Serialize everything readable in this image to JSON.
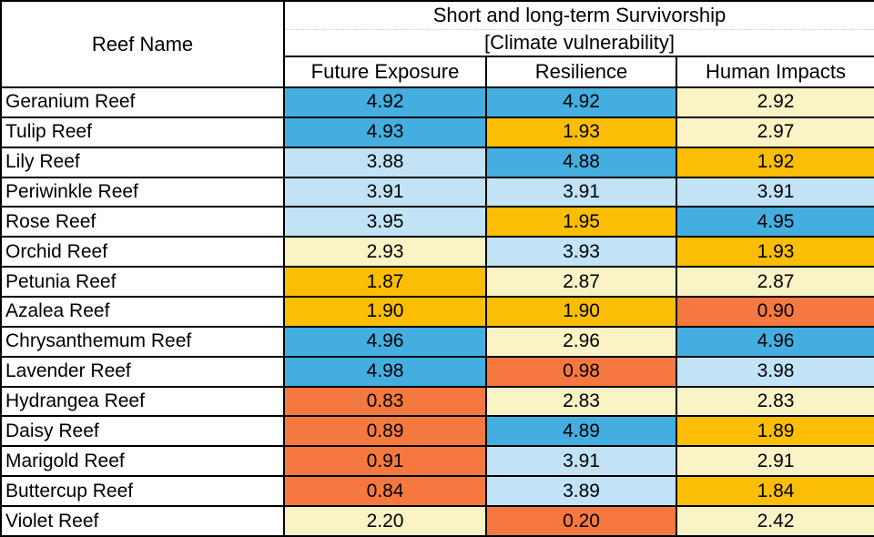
{
  "table": {
    "corner_header": "Reef Name",
    "group_header_line1": "Short and long-term Survivorship",
    "group_header_line2": "[Climate vulnerability]",
    "columns": [
      "Future Exposure",
      "Resilience",
      "Human Impacts"
    ],
    "rows": [
      {
        "name": "Geranium Reef",
        "values": [
          "4.92",
          "4.92",
          "2.92"
        ]
      },
      {
        "name": "Tulip Reef",
        "values": [
          "4.93",
          "1.93",
          "2.97"
        ]
      },
      {
        "name": "Lily Reef",
        "values": [
          "3.88",
          "4.88",
          "1.92"
        ]
      },
      {
        "name": "Periwinkle Reef",
        "values": [
          "3.91",
          "3.91",
          "3.91"
        ]
      },
      {
        "name": "Rose Reef",
        "values": [
          "3.95",
          "1.95",
          "4.95"
        ]
      },
      {
        "name": "Orchid Reef",
        "values": [
          "2.93",
          "3.93",
          "1.93"
        ]
      },
      {
        "name": "Petunia Reef",
        "values": [
          "1.87",
          "2.87",
          "2.87"
        ]
      },
      {
        "name": "Azalea Reef",
        "values": [
          "1.90",
          "1.90",
          "0.90"
        ]
      },
      {
        "name": "Chrysanthemum Reef",
        "values": [
          "4.96",
          "2.96",
          "4.96"
        ]
      },
      {
        "name": "Lavender Reef",
        "values": [
          "4.98",
          "0.98",
          "3.98"
        ]
      },
      {
        "name": "Hydrangea Reef",
        "values": [
          "0.83",
          "2.83",
          "2.83"
        ]
      },
      {
        "name": "Daisy Reef",
        "values": [
          "0.89",
          "4.89",
          "1.89"
        ]
      },
      {
        "name": "Marigold Reef",
        "values": [
          "0.91",
          "3.91",
          "2.91"
        ]
      },
      {
        "name": "Buttercup Reef",
        "values": [
          "0.84",
          "3.89",
          "1.84"
        ]
      },
      {
        "name": "Violet Reef",
        "values": [
          "2.20",
          "0.20",
          "2.42"
        ]
      }
    ]
  },
  "colors": {
    "scale": [
      "#F5793F",
      "#FCBE05",
      "#FAF3C6",
      "#C1E3F5",
      "#45AEE0"
    ],
    "scale_meaning": [
      "value 0.x = orange",
      "value 1.x = amber",
      "value 2.x = pale yellow",
      "value 3.x = light blue",
      "value 4.x = medium blue"
    ],
    "border": "#000000",
    "text": "#000000"
  },
  "chart_data": {
    "type": "heatmap",
    "title": "Short and long-term Survivorship [Climate vulnerability]",
    "row_label_header": "Reef Name",
    "columns": [
      "Future Exposure",
      "Resilience",
      "Human Impacts"
    ],
    "rows": [
      "Geranium Reef",
      "Tulip Reef",
      "Lily Reef",
      "Periwinkle Reef",
      "Rose Reef",
      "Orchid Reef",
      "Petunia Reef",
      "Azalea Reef",
      "Chrysanthemum Reef",
      "Lavender Reef",
      "Hydrangea Reef",
      "Daisy Reef",
      "Marigold Reef",
      "Buttercup Reef",
      "Violet Reef"
    ],
    "values": [
      [
        4.92,
        4.92,
        2.92
      ],
      [
        4.93,
        1.93,
        2.97
      ],
      [
        3.88,
        4.88,
        1.92
      ],
      [
        3.91,
        3.91,
        3.91
      ],
      [
        3.95,
        1.95,
        4.95
      ],
      [
        2.93,
        3.93,
        1.93
      ],
      [
        1.87,
        2.87,
        2.87
      ],
      [
        1.9,
        1.9,
        0.9
      ],
      [
        4.96,
        2.96,
        4.96
      ],
      [
        4.98,
        0.98,
        3.98
      ],
      [
        0.83,
        2.83,
        2.83
      ],
      [
        0.89,
        4.89,
        1.89
      ],
      [
        0.91,
        3.91,
        2.91
      ],
      [
        0.84,
        3.89,
        1.84
      ],
      [
        2.2,
        0.2,
        2.42
      ]
    ],
    "value_range": [
      0,
      5
    ],
    "color_buckets_by_integer_part": [
      "#F5793F",
      "#FCBE05",
      "#FAF3C6",
      "#C1E3F5",
      "#45AEE0"
    ],
    "legend": "none",
    "grid": "black cell borders"
  }
}
